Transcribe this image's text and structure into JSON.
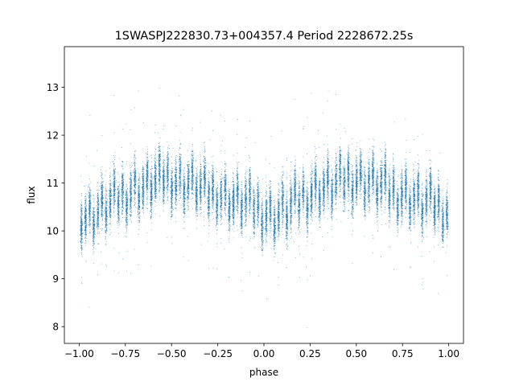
{
  "chart_data": {
    "type": "scatter",
    "title": "1SWASPJ222830.73+004357.4 Period 2228672.25s",
    "xlabel": "phase",
    "ylabel": "flux",
    "xlim": [
      -1.08,
      1.08
    ],
    "ylim": [
      7.65,
      13.85
    ],
    "x_ticks": [
      -1.0,
      -0.75,
      -0.5,
      -0.25,
      0.0,
      0.25,
      0.5,
      0.75,
      1.0
    ],
    "x_tick_labels": [
      "−1.00",
      "−0.75",
      "−0.50",
      "−0.25",
      "0.00",
      "0.25",
      "0.50",
      "0.75",
      "1.00"
    ],
    "y_ticks": [
      8,
      9,
      10,
      11,
      12,
      13
    ],
    "y_tick_labels": [
      "8",
      "9",
      "10",
      "11",
      "12",
      "13"
    ],
    "grid": false,
    "marker_color": "#1f77b4",
    "series": [
      {
        "x_range": [
          -1.0,
          1.0
        ],
        "typical_flux_band": [
          9.6,
          11.6
        ],
        "mean_flux_trend": {
          "phase": [
            0.0,
            0.05,
            0.1,
            0.15,
            0.2,
            0.25,
            0.3,
            0.35,
            0.4,
            0.45,
            0.5,
            0.55,
            0.6,
            0.65,
            0.7,
            0.75,
            0.8,
            0.85,
            0.9,
            0.95,
            1.0
          ],
          "flux": [
            10.4,
            10.3,
            10.4,
            10.5,
            10.7,
            10.8,
            10.9,
            10.9,
            11.0,
            11.1,
            11.1,
            11.0,
            11.0,
            10.9,
            10.8,
            10.8,
            10.7,
            10.6,
            10.6,
            10.5,
            10.4
          ]
        },
        "flux_min": 7.95,
        "flux_max": 13.5,
        "n_points": 22000
      }
    ]
  }
}
